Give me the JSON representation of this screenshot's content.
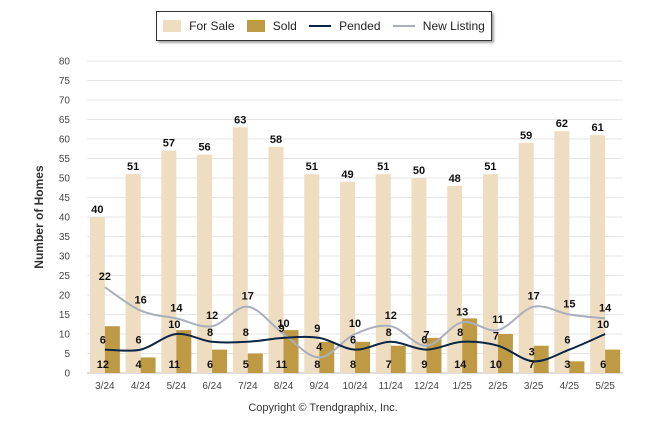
{
  "chart_data": {
    "type": "bar",
    "categories": [
      "3/24",
      "4/24",
      "5/24",
      "6/24",
      "7/24",
      "8/24",
      "9/24",
      "10/24",
      "11/24",
      "12/24",
      "1/25",
      "2/25",
      "3/25",
      "4/25",
      "5/25"
    ],
    "series": [
      {
        "name": "For Sale",
        "type": "bar",
        "color": "#eeddc1",
        "values": [
          40,
          51,
          57,
          56,
          63,
          58,
          51,
          49,
          51,
          50,
          48,
          51,
          59,
          62,
          61
        ]
      },
      {
        "name": "Sold",
        "type": "bar",
        "color": "#bf9a45",
        "values": [
          12,
          4,
          11,
          6,
          5,
          11,
          8,
          8,
          7,
          9,
          14,
          10,
          7,
          3,
          6
        ]
      },
      {
        "name": "Pended",
        "type": "line",
        "color": "#0b2545",
        "values": [
          6,
          6,
          10,
          8,
          8,
          9,
          9,
          6,
          8,
          6,
          8,
          7,
          3,
          6,
          10
        ]
      },
      {
        "name": "New Listing",
        "type": "line",
        "color": "#a9b0bc",
        "values": [
          22,
          16,
          14,
          12,
          17,
          10,
          4,
          10,
          12,
          7,
          13,
          11,
          17,
          15,
          14
        ]
      }
    ],
    "ylabel": "Number of Homes",
    "ylim": [
      0,
      80
    ],
    "yticks": [
      0,
      5,
      10,
      15,
      20,
      25,
      30,
      35,
      40,
      45,
      50,
      55,
      60,
      65,
      70,
      75,
      80
    ],
    "grid": true,
    "legend_position": "top-center"
  },
  "footer": "Copyright © Trendgraphix, Inc."
}
